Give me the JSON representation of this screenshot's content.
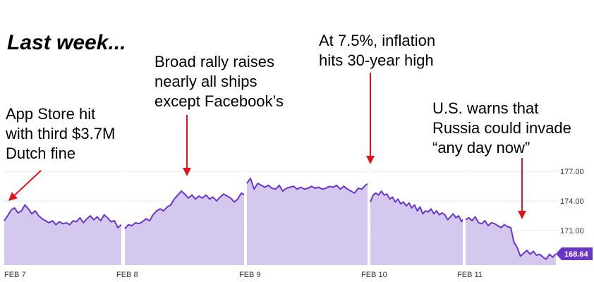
{
  "headline": "Last week...",
  "annotations": [
    {
      "lines": [
        "App Store hit",
        "with third $3.7M",
        "Dutch fine"
      ]
    },
    {
      "lines": [
        "Broad rally raises",
        "nearly all ships",
        "except Facebook’s"
      ]
    },
    {
      "lines": [
        "At 7.5%, inflation",
        "hits 30-year high"
      ]
    },
    {
      "lines": [
        "U.S. warns that",
        "Russia could invade",
        "“any day now”"
      ]
    }
  ],
  "chart_data": {
    "type": "area",
    "title": "",
    "xlabel": "",
    "ylabel": "",
    "ylim": [
      167.5,
      177.8
    ],
    "y_ticks": [
      "177.00",
      "174.00",
      "171.00"
    ],
    "y_tick_values": [
      177,
      174,
      171
    ],
    "x_ticks": [
      "FEB 7",
      "FEB 8",
      "FEB 9",
      "FEB 10",
      "FEB 11"
    ],
    "grid": true,
    "last_price_label": "168.64",
    "colors": {
      "line": "#6a35c8",
      "fill": "#d4c8ee",
      "badge": "#6a35c8",
      "annotation_arrow": "#e0141c"
    },
    "series": [
      {
        "sessions": [
          {
            "day": "FEB 7",
            "values": [
              172.0,
              172.5,
              173.1,
              173.3,
              172.8,
              173.0,
              173.6,
              173.2,
              172.7,
              173.0,
              172.5,
              172.2,
              172.0,
              171.8,
              172.0,
              171.6,
              171.9,
              171.7,
              171.8,
              171.6,
              172.0,
              171.9,
              172.3,
              171.8,
              172.2,
              172.5,
              172.1,
              172.4,
              172.0,
              172.6,
              172.3,
              171.9,
              172.0,
              171.3,
              171.6
            ]
          },
          {
            "day": "FEB 8",
            "values": [
              171.2,
              171.6,
              171.5,
              171.8,
              171.7,
              171.9,
              172.2,
              172.0,
              172.6,
              173.0,
              173.2,
              173.0,
              173.4,
              173.6,
              174.2,
              174.6,
              175.0,
              174.7,
              174.3,
              174.6,
              174.2,
              174.5,
              174.3,
              174.6,
              174.2,
              174.4,
              174.0,
              174.4,
              174.7,
              174.5,
              174.3,
              173.9,
              174.2,
              174.8,
              174.6
            ]
          },
          {
            "day": "FEB 9",
            "values": [
              175.8,
              176.3,
              175.2,
              175.8,
              175.6,
              175.4,
              175.6,
              175.3,
              175.2,
              175.6,
              175.0,
              175.3,
              175.4,
              175.5,
              175.2,
              175.4,
              175.2,
              175.3,
              175.5,
              175.3,
              175.4,
              175.2,
              175.3,
              175.5,
              175.4,
              175.6,
              175.2,
              175.5,
              175.2,
              175.0,
              174.8,
              175.3,
              175.2,
              175.6,
              175.8
            ]
          },
          {
            "day": "FEB 10",
            "values": [
              173.9,
              174.6,
              174.8,
              174.6,
              175.0,
              174.6,
              174.7,
              174.2,
              174.4,
              173.9,
              174.2,
              173.7,
              173.9,
              173.5,
              173.8,
              173.3,
              173.6,
              173.0,
              173.4,
              172.7,
              173.0,
              172.9,
              173.2,
              172.7,
              173.0,
              172.6,
              172.8,
              172.6,
              172.1,
              172.4,
              172.7,
              172.3,
              172.5,
              171.9,
              172.3
            ]
          },
          {
            "day": "FEB 11",
            "values": [
              172.1,
              172.3,
              172.0,
              172.4,
              171.8,
              171.7,
              172.0,
              171.5,
              171.8,
              171.7,
              171.5,
              171.3,
              171.6,
              171.4,
              171.3,
              169.8,
              169.3,
              168.4,
              168.7,
              169.0,
              168.6,
              168.9,
              168.5,
              168.6,
              168.3,
              168.1,
              168.6,
              168.3,
              168.64
            ]
          }
        ]
      }
    ]
  }
}
